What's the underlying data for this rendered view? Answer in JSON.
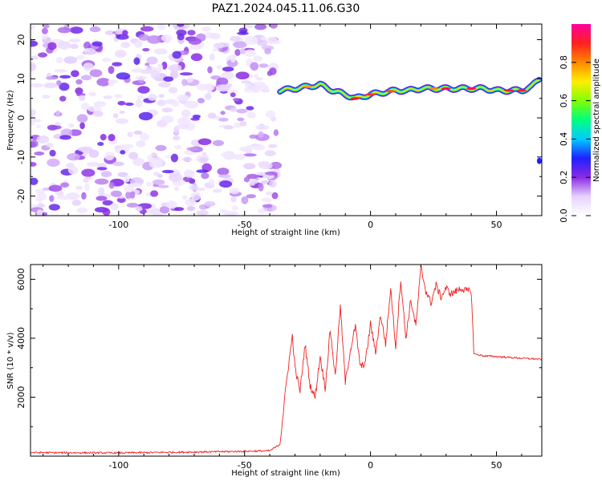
{
  "title": "PAZ1.2024.045.11.06.G30",
  "chart_data": [
    {
      "type": "heatmap",
      "xlabel": "Height of straight line (km)",
      "ylabel": "Frequency (Hz)",
      "xlim": [
        -135,
        68
      ],
      "ylim": [
        -25,
        24
      ],
      "xticks": [
        -100,
        -50,
        0,
        50
      ],
      "yticks": [
        -20,
        -10,
        0,
        10,
        20
      ],
      "noise_region_x": [
        -135,
        -37
      ],
      "signal_ridge": {
        "x": [
          -36,
          -30,
          -25,
          -20,
          -15,
          -10,
          -6,
          0,
          5,
          10,
          15,
          20,
          25,
          30,
          35,
          40,
          45,
          50,
          55,
          60,
          64,
          67
        ],
        "freq": [
          7,
          7.5,
          8,
          8.5,
          7,
          6,
          5,
          6,
          6.5,
          7,
          7,
          7.5,
          7.5,
          7.5,
          7.5,
          7.5,
          7.5,
          7,
          7,
          7,
          8,
          10
        ]
      },
      "colorbar": {
        "label": "Normalized spectral amplitude",
        "range": [
          0.0,
          1.0
        ],
        "ticks": [
          "0.0",
          "0.2",
          "0.4",
          "0.6",
          "0.8"
        ],
        "tick_values": [
          0.0,
          0.2,
          0.4,
          0.6,
          0.8
        ],
        "colors": [
          "#ffffff",
          "#e6d2ff",
          "#8a2be2",
          "#2020ff",
          "#00ccff",
          "#00ff80",
          "#80ff00",
          "#ffee00",
          "#ff8800",
          "#ff2020",
          "#ff00a0"
        ]
      }
    },
    {
      "type": "line",
      "xlabel": "Height of straight line (km)",
      "ylabel": "SNR (10 * v/v)",
      "xlim": [
        -135,
        68
      ],
      "ylim": [
        0,
        6500
      ],
      "xticks": [
        -100,
        -50,
        0,
        50
      ],
      "yticks": [
        2000,
        4000,
        6000
      ],
      "line_color": "#ee2222",
      "x": [
        -135,
        -100,
        -60,
        -40,
        -36,
        -33,
        -31,
        -30,
        -28,
        -26,
        -24,
        -22,
        -20,
        -18,
        -16,
        -14,
        -12,
        -10,
        -8,
        -6,
        -4,
        -2,
        0,
        2,
        4,
        6,
        8,
        10,
        12,
        14,
        16,
        18,
        20,
        22,
        24,
        26,
        28,
        30,
        32,
        34,
        36,
        38,
        40,
        41,
        42,
        45,
        50,
        55,
        60,
        65,
        68
      ],
      "y": [
        120,
        110,
        150,
        180,
        400,
        2800,
        4100,
        3000,
        2200,
        3800,
        2400,
        2000,
        3400,
        2300,
        4300,
        2700,
        5100,
        2500,
        3600,
        4400,
        3000,
        3200,
        4500,
        3500,
        4800,
        3800,
        5700,
        3700,
        6000,
        4000,
        5300,
        4400,
        6400,
        5600,
        5200,
        5800,
        5400,
        5700,
        5500,
        5600,
        5700,
        5600,
        5600,
        3500,
        3450,
        3400,
        3380,
        3350,
        3320,
        3300,
        3280
      ]
    }
  ]
}
